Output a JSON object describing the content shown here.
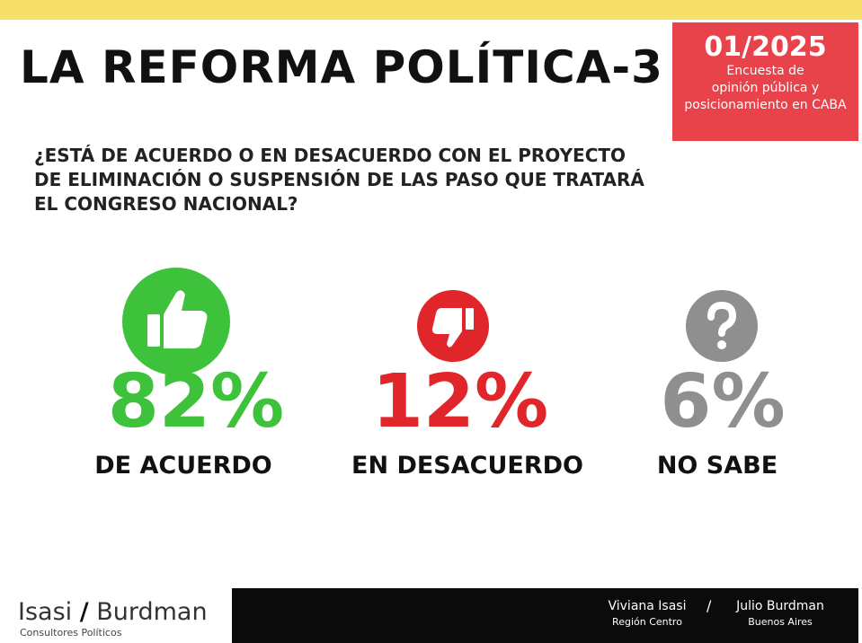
{
  "header": {
    "title": "LA REFORMA POLÍTICA-3",
    "badge": {
      "date": "01/2025",
      "lines": [
        "Encuesta de",
        "opinión pública y",
        "posicionamiento en CABA"
      ]
    }
  },
  "question": {
    "lines": [
      "¿ESTÁ DE ACUERDO O EN DESACUERDO CON EL PROYECTO",
      "DE ELIMINACIÓN O SUSPENSIÓN DE  LAS PASO QUE TRATARÁ",
      "EL CONGRESO NACIONAL?"
    ]
  },
  "results": [
    {
      "value": "82%",
      "label": "DE ACUERDO"
    },
    {
      "value": "12%",
      "label": "EN DESACUERDO"
    },
    {
      "value": "6%",
      "label": "NO SABE"
    }
  ],
  "footer": {
    "logo": {
      "left": "Isasi",
      "slash": "/",
      "right": "Burdman",
      "subtitle": "Consultores Políticos"
    },
    "authors": [
      {
        "name": "Viviana Isasi",
        "region": "Región Centro"
      },
      {
        "name": "Julio Burdman",
        "region": "Buenos Aires"
      }
    ],
    "separator": "/"
  }
}
